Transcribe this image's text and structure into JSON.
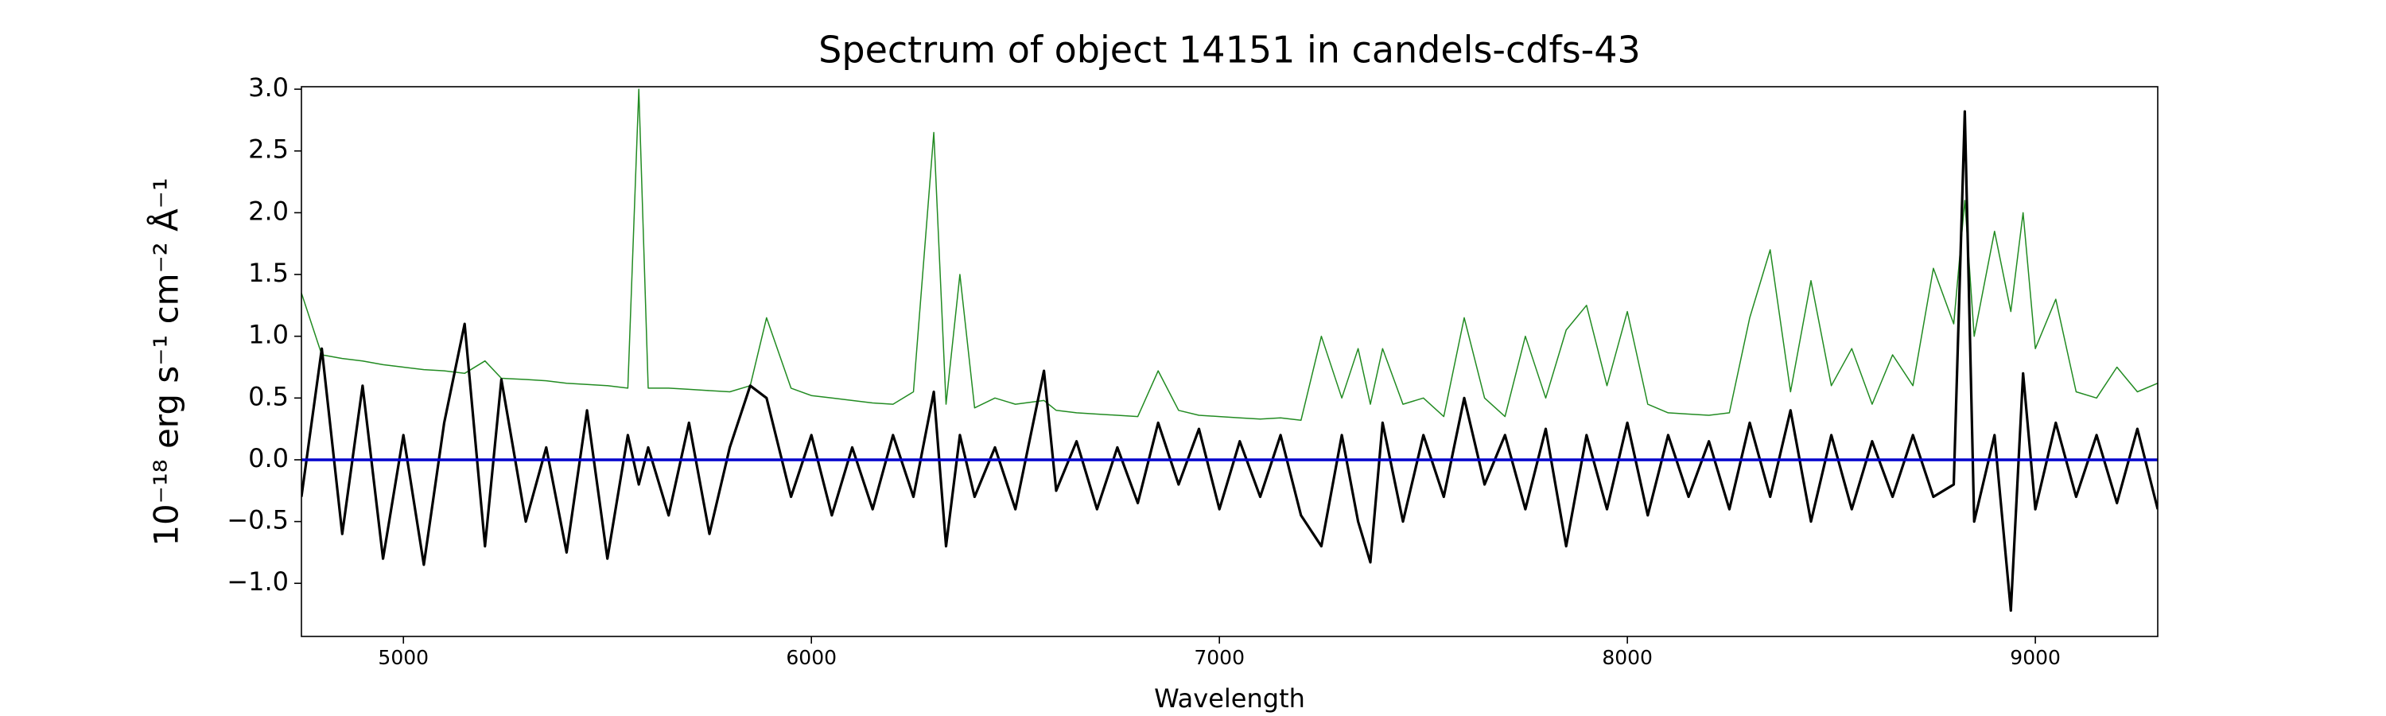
{
  "chart_data": {
    "type": "line",
    "title": "Spectrum of object 14151 in candels-cdfs-43",
    "xlabel": "Wavelength",
    "ylabel": "10⁻¹⁸ erg s⁻¹ cm⁻² Å⁻¹",
    "x": [
      4750,
      4800,
      4850,
      4900,
      4950,
      5000,
      5050,
      5100,
      5150,
      5200,
      5240,
      5300,
      5350,
      5400,
      5450,
      5500,
      5550,
      5577,
      5600,
      5650,
      5700,
      5750,
      5800,
      5850,
      5890,
      5950,
      6000,
      6050,
      6100,
      6150,
      6200,
      6250,
      6300,
      6330,
      6364,
      6400,
      6450,
      6500,
      6570,
      6600,
      6650,
      6700,
      6750,
      6800,
      6850,
      6900,
      6950,
      7000,
      7050,
      7100,
      7150,
      7200,
      7250,
      7300,
      7340,
      7370,
      7400,
      7450,
      7500,
      7550,
      7600,
      7650,
      7700,
      7750,
      7800,
      7850,
      7900,
      7950,
      8000,
      8050,
      8100,
      8150,
      8200,
      8250,
      8300,
      8350,
      8400,
      8450,
      8500,
      8550,
      8600,
      8650,
      8700,
      8750,
      8800,
      8827,
      8850,
      8900,
      8940,
      8970,
      9000,
      9050,
      9100,
      9150,
      9200,
      9250,
      9300
    ],
    "series": [
      {
        "color": "#228b22",
        "values": [
          1.35,
          0.85,
          0.82,
          0.8,
          0.77,
          0.75,
          0.73,
          0.72,
          0.7,
          0.8,
          0.66,
          0.65,
          0.64,
          0.62,
          0.61,
          0.6,
          0.58,
          3.0,
          0.58,
          0.58,
          0.57,
          0.56,
          0.55,
          0.6,
          1.15,
          0.58,
          0.52,
          0.5,
          0.48,
          0.46,
          0.45,
          0.55,
          2.65,
          0.45,
          1.5,
          0.42,
          0.5,
          0.45,
          0.48,
          0.4,
          0.38,
          0.37,
          0.36,
          0.35,
          0.72,
          0.4,
          0.36,
          0.35,
          0.34,
          0.33,
          0.34,
          0.32,
          1.0,
          0.5,
          0.9,
          0.45,
          0.9,
          0.45,
          0.5,
          0.35,
          1.15,
          0.5,
          0.35,
          1.0,
          0.5,
          1.05,
          1.25,
          0.6,
          1.2,
          0.45,
          0.38,
          0.37,
          0.36,
          0.38,
          1.15,
          1.7,
          0.55,
          1.45,
          0.6,
          0.9,
          0.45,
          0.85,
          0.6,
          1.55,
          1.1,
          2.1,
          1.0,
          1.85,
          1.2,
          2.0,
          0.9,
          1.3,
          0.55,
          0.5,
          0.75,
          0.55,
          0.62
        ]
      },
      {
        "color": "#000000",
        "values": [
          -0.3,
          0.9,
          -0.6,
          0.6,
          -0.8,
          0.2,
          -0.85,
          0.3,
          1.1,
          -0.7,
          0.65,
          -0.5,
          0.1,
          -0.75,
          0.4,
          -0.8,
          0.2,
          -0.2,
          0.1,
          -0.45,
          0.3,
          -0.6,
          0.1,
          0.6,
          0.5,
          -0.3,
          0.2,
          -0.45,
          0.1,
          -0.4,
          0.2,
          -0.3,
          0.55,
          -0.7,
          0.2,
          -0.3,
          0.1,
          -0.4,
          0.72,
          -0.25,
          0.15,
          -0.4,
          0.1,
          -0.35,
          0.3,
          -0.2,
          0.25,
          -0.4,
          0.15,
          -0.3,
          0.2,
          -0.45,
          -0.7,
          0.2,
          -0.5,
          -0.83,
          0.3,
          -0.5,
          0.2,
          -0.3,
          0.5,
          -0.2,
          0.2,
          -0.4,
          0.25,
          -0.7,
          0.2,
          -0.4,
          0.3,
          -0.45,
          0.2,
          -0.3,
          0.15,
          -0.4,
          0.3,
          -0.3,
          0.4,
          -0.5,
          0.2,
          -0.4,
          0.15,
          -0.3,
          0.2,
          -0.3,
          -0.2,
          2.82,
          -0.5,
          0.2,
          -1.22,
          0.7,
          -0.4,
          0.3,
          -0.3,
          0.2,
          -0.35,
          0.25,
          -0.4
        ]
      }
    ],
    "hline": {
      "value": 0,
      "color": "#0000cc"
    },
    "xlim": [
      4750,
      9300
    ],
    "ylim": [
      -1.43,
      3.02
    ],
    "xticks": [
      5000,
      6000,
      7000,
      8000,
      9000
    ],
    "yticks": [
      {
        "value": 3,
        "label": "3.0"
      },
      {
        "value": 2.5,
        "label": "2.5"
      },
      {
        "value": 2,
        "label": "2.0"
      },
      {
        "value": 1.5,
        "label": "1.5"
      },
      {
        "value": 1,
        "label": "1.0"
      },
      {
        "value": 0.5,
        "label": "0.5"
      },
      {
        "value": 0,
        "label": "0.0"
      },
      {
        "value": -0.5,
        "label": "−0.5"
      },
      {
        "value": -1,
        "label": "−1.0"
      }
    ]
  }
}
